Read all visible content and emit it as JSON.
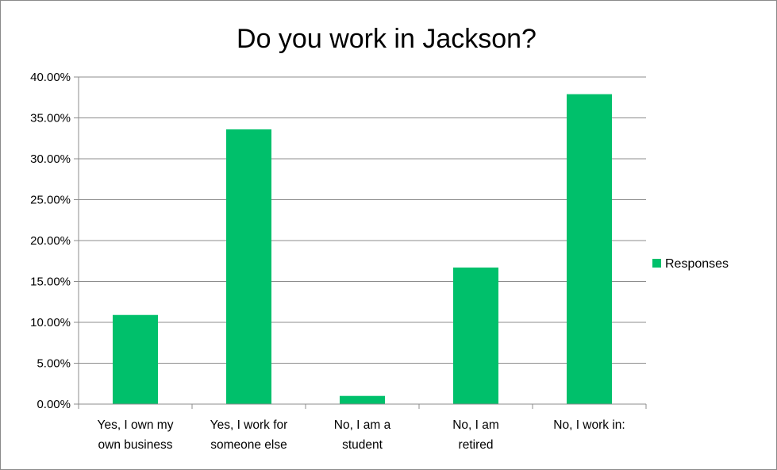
{
  "chart_data": {
    "type": "bar",
    "title": "Do you work in Jackson?",
    "categories": [
      [
        "Yes, I own my",
        "own business"
      ],
      [
        "Yes, I work for",
        "someone else"
      ],
      [
        "No, I am a",
        "student"
      ],
      [
        "No, I am",
        "retired"
      ],
      [
        "No, I work in:"
      ]
    ],
    "series": [
      {
        "name": "Responses",
        "values": [
          10.9,
          33.6,
          1.0,
          16.7,
          37.9
        ]
      }
    ],
    "ylim": [
      0,
      40
    ],
    "ytick_step": 5,
    "ytick_labels": [
      "0.00%",
      "5.00%",
      "10.00%",
      "15.00%",
      "20.00%",
      "25.00%",
      "30.00%",
      "35.00%",
      "40.00%"
    ],
    "grid": true,
    "legend": "right",
    "colors": {
      "bar": "#00c06b",
      "grid": "#8c8c8c",
      "axis": "#8c8c8c"
    }
  }
}
